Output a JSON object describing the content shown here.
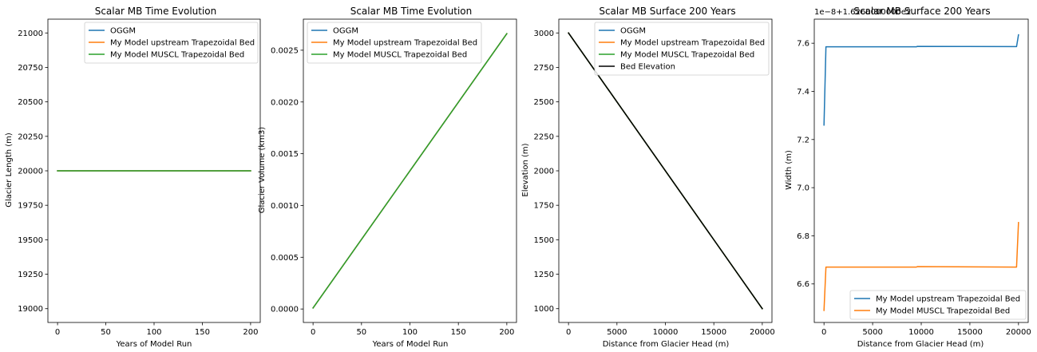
{
  "chart_data": [
    {
      "type": "line",
      "title": "Scalar MB Time Evolution",
      "xlabel": "Years of Model Run",
      "ylabel": "Glacier Length (m)",
      "xlim": [
        -10,
        210
      ],
      "ylim": [
        18900,
        21100
      ],
      "xticks": [
        0,
        50,
        100,
        150,
        200
      ],
      "yticks": [
        19000,
        19250,
        19500,
        19750,
        20000,
        20250,
        20500,
        20750,
        21000
      ],
      "xtick_labels": [
        "0",
        "50",
        "100",
        "150",
        "200"
      ],
      "ytick_labels": [
        "19000",
        "19250",
        "19500",
        "19750",
        "20000",
        "20250",
        "20500",
        "20750",
        "21000"
      ],
      "legend": {
        "placement": "top-right"
      },
      "series": [
        {
          "name": "OGGM",
          "color": "#1f77b4",
          "x": [
            0,
            200
          ],
          "y": [
            20000,
            20000
          ]
        },
        {
          "name": "My Model upstream Trapezoidal Bed",
          "color": "#ff7f0e",
          "x": [
            0,
            200
          ],
          "y": [
            20000,
            20000
          ]
        },
        {
          "name": "My Model MUSCL Trapezoidal Bed",
          "color": "#2ca02c",
          "x": [
            0,
            200
          ],
          "y": [
            20000,
            20000
          ]
        }
      ]
    },
    {
      "type": "line",
      "title": "Scalar MB Time Evolution",
      "xlabel": "Years of Model Run",
      "ylabel": "Glacier Volume (km3)",
      "xlim": [
        -10,
        210
      ],
      "ylim": [
        -0.00013,
        0.0028
      ],
      "xticks": [
        0,
        50,
        100,
        150,
        200
      ],
      "yticks": [
        0,
        0.0005,
        0.001,
        0.0015,
        0.002,
        0.0025
      ],
      "xtick_labels": [
        "0",
        "50",
        "100",
        "150",
        "200"
      ],
      "ytick_labels": [
        "0.0000",
        "0.0005",
        "0.0010",
        "0.0015",
        "0.0020",
        "0.0025"
      ],
      "legend": {
        "placement": "top-left"
      },
      "series": [
        {
          "name": "OGGM",
          "color": "#1f77b4",
          "x": [
            0,
            200
          ],
          "y": [
            1e-05,
            0.00266
          ]
        },
        {
          "name": "My Model upstream Trapezoidal Bed",
          "color": "#ff7f0e",
          "x": [
            0,
            200
          ],
          "y": [
            1e-05,
            0.00266
          ]
        },
        {
          "name": "My Model MUSCL Trapezoidal Bed",
          "color": "#2ca02c",
          "x": [
            0,
            200
          ],
          "y": [
            1e-05,
            0.00266
          ]
        }
      ]
    },
    {
      "type": "line",
      "title": "Scalar MB Surface 200 Years",
      "xlabel": "Distance from Glacier Head (m)",
      "ylabel": "Elevation (m)",
      "xlim": [
        -1000,
        21000
      ],
      "ylim": [
        900,
        3100
      ],
      "xticks": [
        0,
        5000,
        10000,
        15000,
        20000
      ],
      "yticks": [
        1000,
        1250,
        1500,
        1750,
        2000,
        2250,
        2500,
        2750,
        3000
      ],
      "xtick_labels": [
        "0",
        "5000",
        "10000",
        "15000",
        "20000"
      ],
      "ytick_labels": [
        "1000",
        "1250",
        "1500",
        "1750",
        "2000",
        "2250",
        "2500",
        "2750",
        "3000"
      ],
      "legend": {
        "placement": "top-right"
      },
      "series": [
        {
          "name": "OGGM",
          "color": "#1f77b4",
          "x": [
            0,
            20000
          ],
          "y": [
            3000,
            1000
          ]
        },
        {
          "name": "My Model upstream Trapezoidal Bed",
          "color": "#ff7f0e",
          "x": [
            0,
            20000
          ],
          "y": [
            3000,
            1000
          ]
        },
        {
          "name": "My Model MUSCL Trapezoidal Bed",
          "color": "#2ca02c",
          "x": [
            0,
            20000
          ],
          "y": [
            3000,
            1000
          ]
        },
        {
          "name": "Bed Elevation",
          "color": "#000000",
          "x": [
            0,
            20000
          ],
          "y": [
            3000,
            1000
          ]
        }
      ]
    },
    {
      "type": "line",
      "title": "Scalar MB Surface 200 Years",
      "xlabel": "Distance from Glacier Head (m)",
      "ylabel": "Width (m)",
      "offset_text": "1e−8+1.6260000000e2",
      "xlim": [
        -1000,
        21000
      ],
      "ylim": [
        6.44,
        7.7
      ],
      "xticks": [
        0,
        5000,
        10000,
        15000,
        20000
      ],
      "yticks": [
        6.6,
        6.8,
        7.0,
        7.2,
        7.4,
        7.6
      ],
      "xtick_labels": [
        "0",
        "5000",
        "10000",
        "15000",
        "20000"
      ],
      "ytick_labels": [
        "6.6",
        "6.8",
        "7.0",
        "7.2",
        "7.4",
        "7.6"
      ],
      "legend": {
        "placement": "lower-right"
      },
      "series": [
        {
          "name": "My Model upstream Trapezoidal Bed",
          "color": "#1f77b4",
          "x": [
            0,
            200,
            9500,
            9600,
            19800,
            20000
          ],
          "y": [
            7.26,
            7.585,
            7.585,
            7.587,
            7.586,
            7.635
          ]
        },
        {
          "name": "My Model MUSCL Trapezoidal Bed",
          "color": "#ff7f0e",
          "x": [
            0,
            200,
            9500,
            9600,
            19800,
            20000
          ],
          "y": [
            6.49,
            6.67,
            6.67,
            6.672,
            6.67,
            6.855
          ]
        }
      ]
    }
  ]
}
